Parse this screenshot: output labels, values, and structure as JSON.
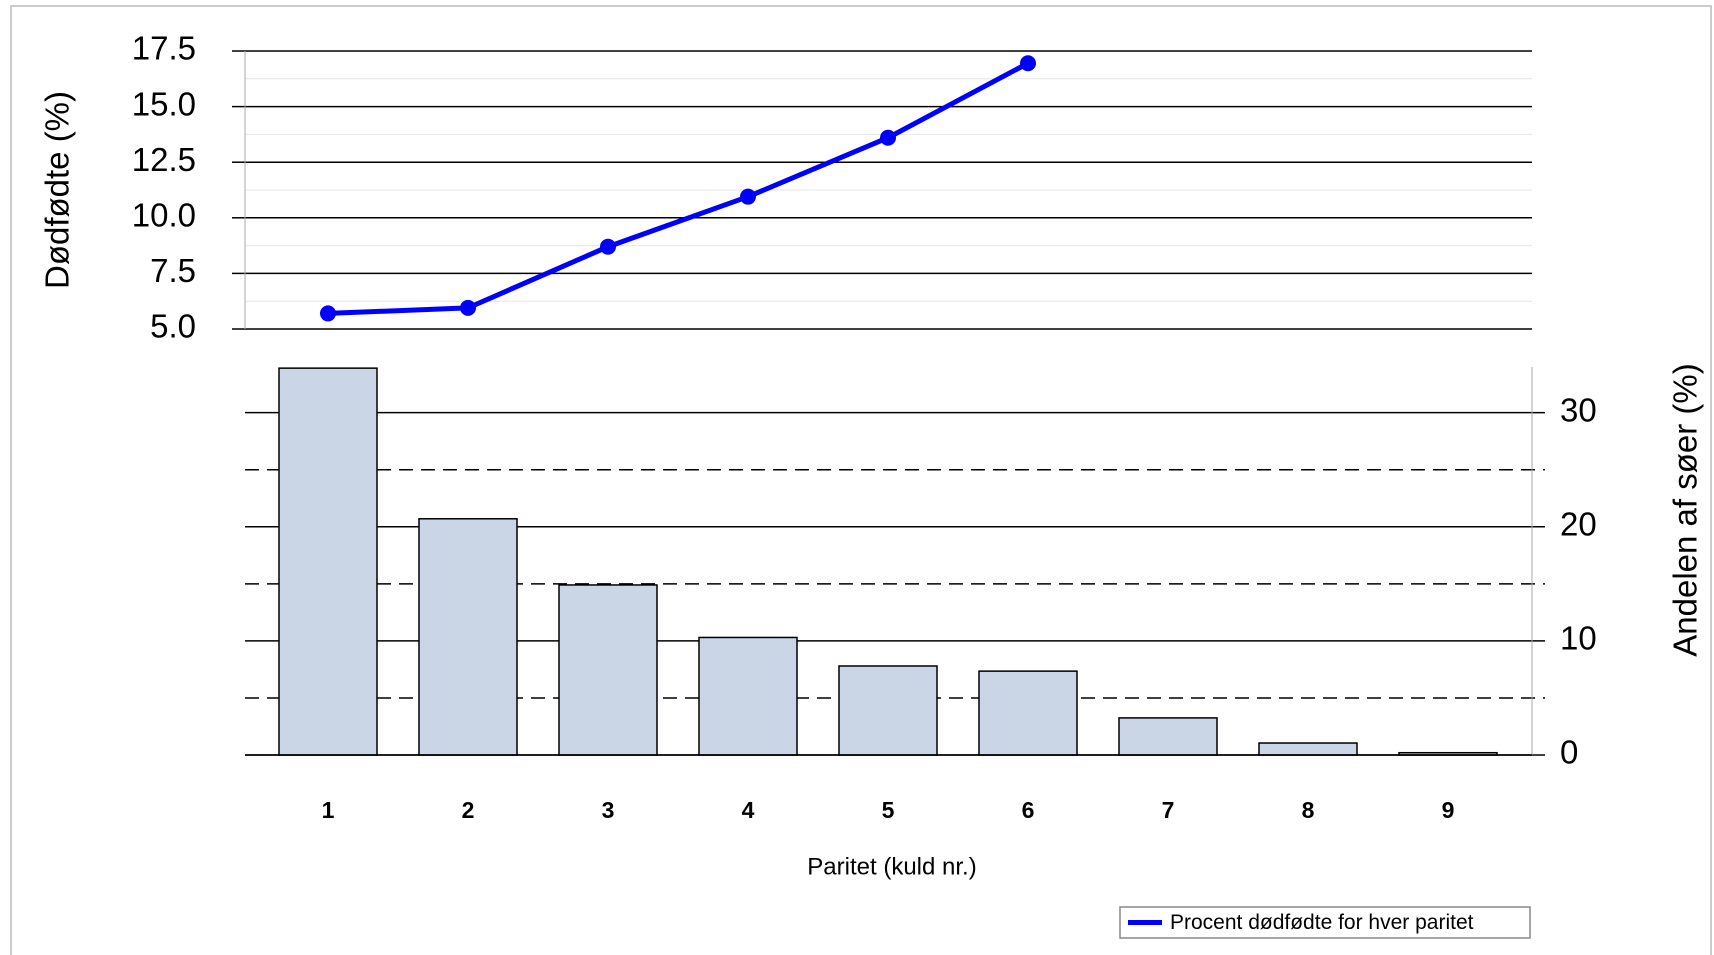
{
  "chart_data": {
    "type": "combo",
    "categories": [
      "1",
      "2",
      "3",
      "4",
      "5",
      "6",
      "7",
      "8",
      "9"
    ],
    "xlabel": "Paritet (kuld nr.)",
    "ylabel": "Dødfødte (%)",
    "y2label": "Andelen af søer (%)",
    "ylim": [
      5,
      17.5
    ],
    "yticks": [
      {
        "value": 5,
        "label": "5.0"
      },
      {
        "value": 7.5,
        "label": "7.5"
      },
      {
        "value": 10,
        "label": "10.0"
      },
      {
        "value": 12.5,
        "label": "12.5"
      },
      {
        "value": 15,
        "label": "15.0"
      },
      {
        "value": 17.5,
        "label": "17.5"
      }
    ],
    "yminorgrid": [
      6.25,
      8.75,
      11.25,
      13.75,
      16.25
    ],
    "y2lim": [
      0,
      34
    ],
    "y2ticks": [
      0,
      10,
      20,
      30
    ],
    "y2minorgrid": [
      5,
      15,
      25
    ],
    "grid": true,
    "legend": "bottom-right",
    "series": [
      {
        "name": "Procent dødfødte for hver paritet",
        "type": "line",
        "color": "#0000ff",
        "axis": "y",
        "values": [
          5.7,
          5.95,
          8.7,
          10.95,
          13.6,
          16.95,
          null,
          null,
          null
        ]
      },
      {
        "type": "bar",
        "color": "#cad5e5",
        "axis": "y2",
        "values": [
          33.9,
          20.7,
          14.9,
          10.3,
          7.8,
          7.35,
          3.25,
          1.05,
          0.2
        ]
      }
    ]
  }
}
